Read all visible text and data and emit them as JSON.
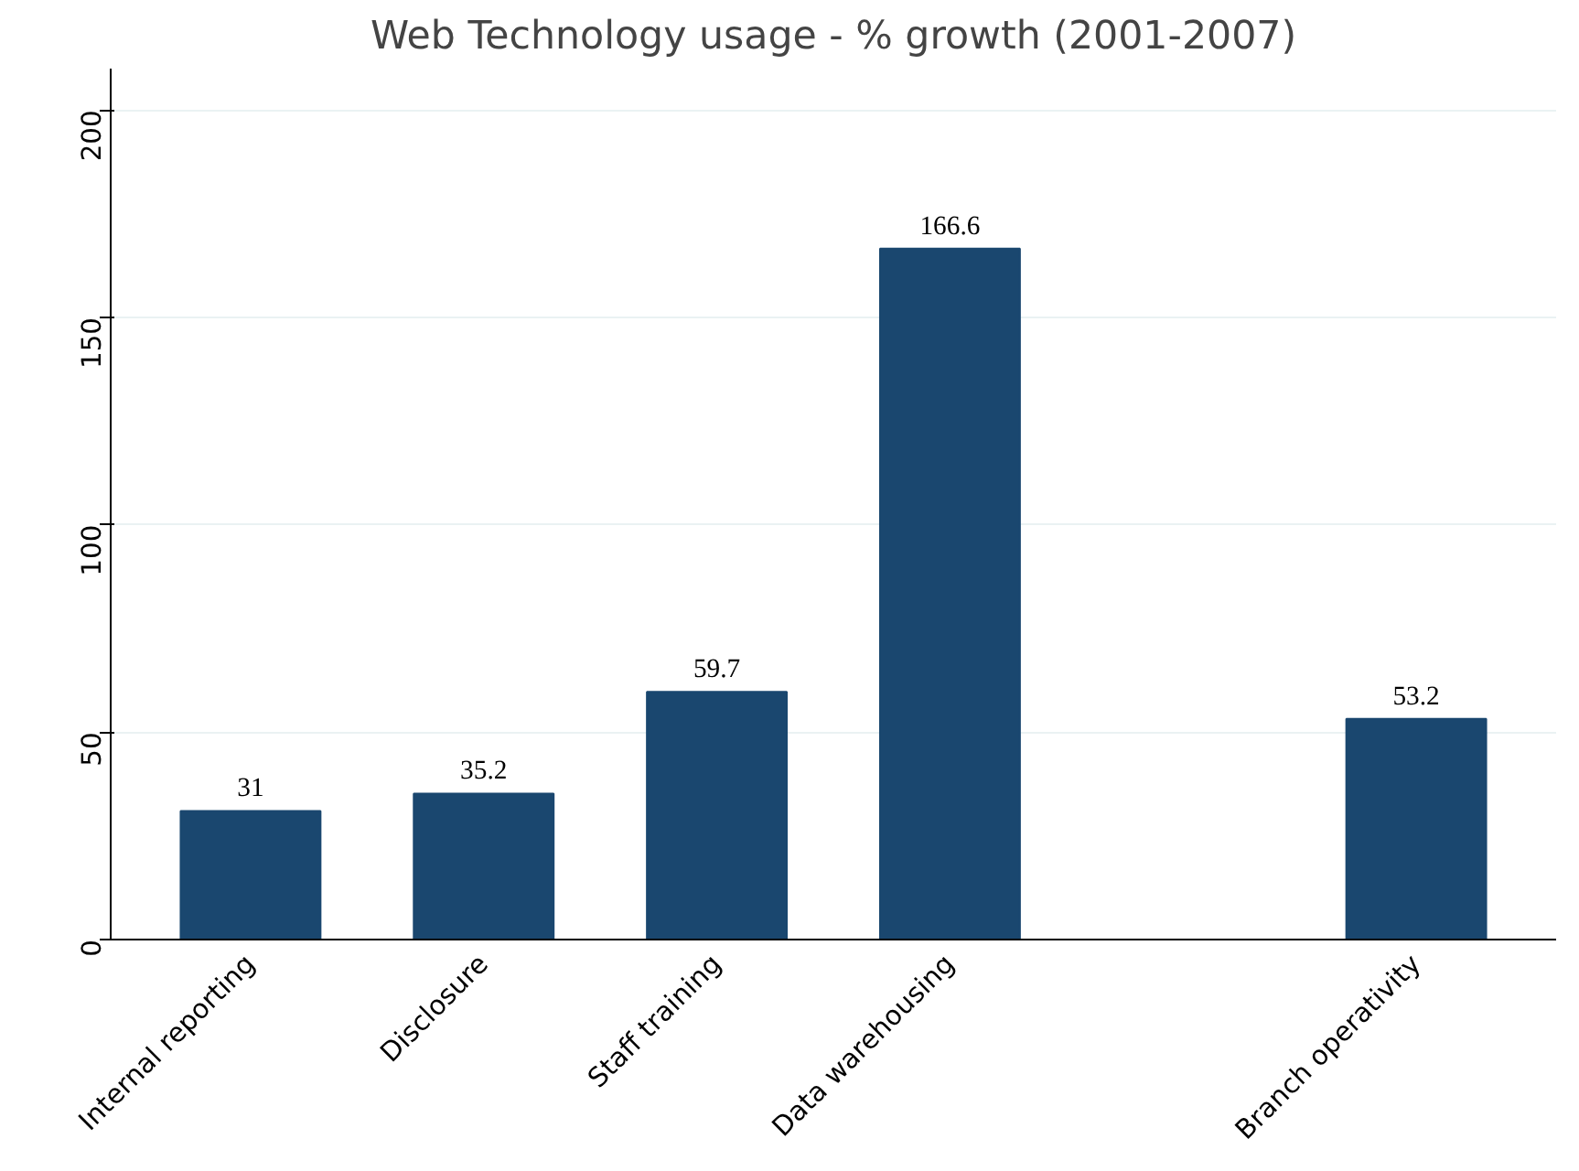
{
  "chart_data": {
    "type": "bar",
    "title": "Web Technology usage - % growth (2001-2007)",
    "categories": [
      "Internal reporting",
      "Disclosure",
      "Staff training",
      "Data warehousing",
      null,
      "Branch operativity"
    ],
    "values": [
      31,
      35.2,
      59.7,
      166.6,
      null,
      53.2
    ],
    "color": "#1a476f",
    "ylim": [
      0,
      210
    ],
    "yticks": [
      0,
      50,
      100,
      150,
      200
    ],
    "grid": "y",
    "data_labels": true
  }
}
